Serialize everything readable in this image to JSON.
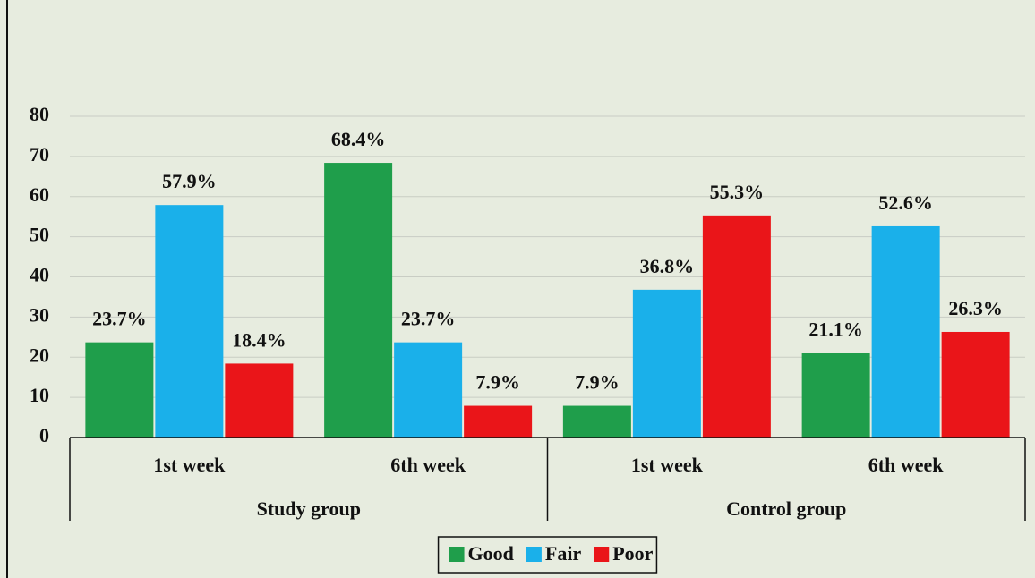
{
  "chart_data": {
    "type": "bar",
    "categories": [
      "1st week",
      "6th week",
      "1st week",
      "6th week"
    ],
    "groups": [
      "Study group",
      "Control group"
    ],
    "series": [
      {
        "name": "Good",
        "color": "#1f9e4b",
        "values": [
          23.7,
          68.4,
          7.9,
          21.1
        ],
        "value_labels": [
          "23.7%",
          "68.4%",
          "7.9%",
          "21.1%"
        ]
      },
      {
        "name": "Fair",
        "color": "#1ab0ea",
        "values": [
          57.9,
          23.7,
          36.8,
          52.6
        ],
        "value_labels": [
          "57.9%",
          "23.7%",
          "36.8%",
          "52.6%"
        ]
      },
      {
        "name": "Poor",
        "color": "#ea1519",
        "values": [
          18.4,
          7.9,
          55.3,
          26.3
        ],
        "value_labels": [
          "18.4%",
          "7.9%",
          "55.3%",
          "26.3%"
        ]
      }
    ],
    "ylim": [
      0,
      80
    ],
    "yticks": [
      0,
      10,
      20,
      30,
      40,
      50,
      60,
      70,
      80
    ],
    "grid": true,
    "legend": "bottom"
  }
}
